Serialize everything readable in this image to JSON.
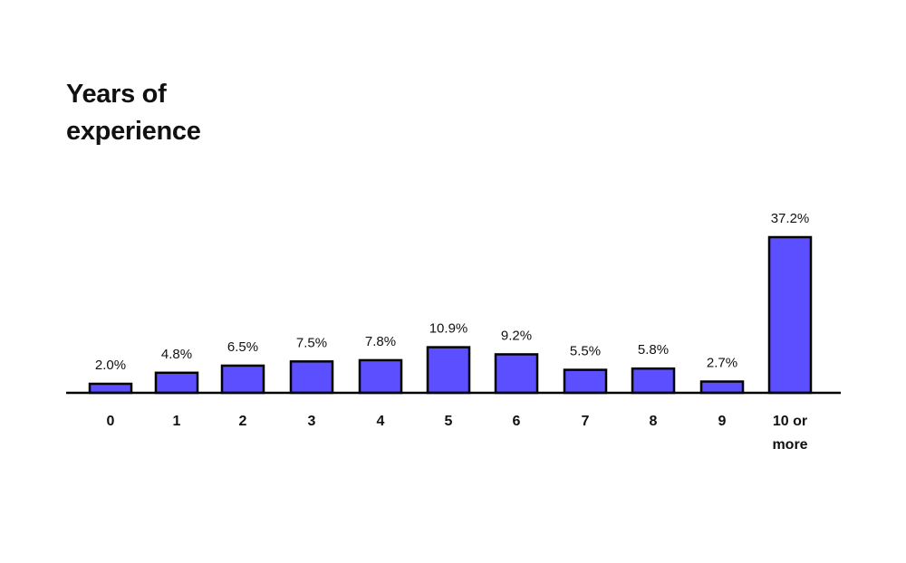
{
  "chart_data": {
    "type": "bar",
    "title": "Years of\nexperience",
    "xlabel": "",
    "ylabel": "",
    "categories": [
      "0",
      "1",
      "2",
      "3",
      "4",
      "5",
      "6",
      "7",
      "8",
      "9",
      "10 or more"
    ],
    "category_lines": [
      [
        "0"
      ],
      [
        "1"
      ],
      [
        "2"
      ],
      [
        "3"
      ],
      [
        "4"
      ],
      [
        "5"
      ],
      [
        "6"
      ],
      [
        "7"
      ],
      [
        "8"
      ],
      [
        "9"
      ],
      [
        "10 or",
        "more"
      ]
    ],
    "values": [
      2.0,
      4.8,
      6.5,
      7.5,
      7.8,
      10.9,
      9.2,
      5.5,
      5.8,
      2.7,
      37.2
    ],
    "value_labels": [
      "2.0%",
      "4.8%",
      "6.5%",
      "7.5%",
      "7.8%",
      "10.9%",
      "9.2%",
      "5.5%",
      "5.8%",
      "2.7%",
      "37.2%"
    ],
    "ylim": [
      0,
      37.2
    ],
    "grid": false,
    "legend": "none",
    "bar_color": "#5b4fff",
    "bar_outline_color": "#000000",
    "axis_color": "#000000"
  }
}
